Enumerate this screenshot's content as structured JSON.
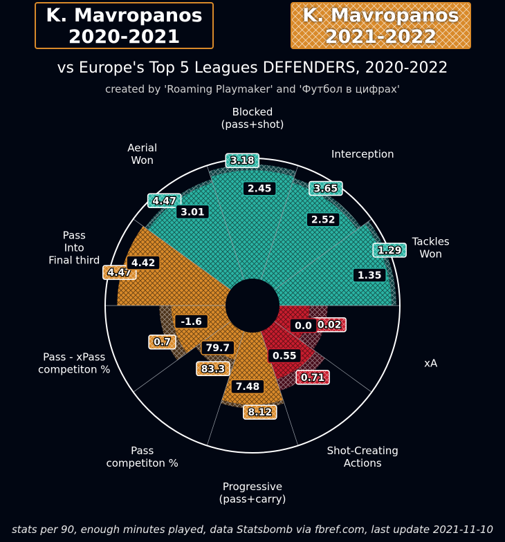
{
  "header": {
    "left_name": "K. Mavropanos",
    "left_season": "2020-2021",
    "right_name": "K. Mavropanos",
    "right_season": "2021-2022"
  },
  "subtitle": "vs Europe's Top 5 Leagues DEFENDERS, 2020-2022",
  "credit": "created by 'Roaming Playmaker' and 'Футбол в цифрах'",
  "footer": "stats per 90, enough minutes played, data Statsbomb via fbref.com, last update 2021-11-10",
  "colors": {
    "background": "#010612",
    "defense": "#2ab3a3",
    "passing": "#d98a2a",
    "attack": "#c81d2e",
    "ring": "#ffffff"
  },
  "chart_data": {
    "type": "polar-bar",
    "series": [
      {
        "name": "2020-2021",
        "style": "solid"
      },
      {
        "name": "2021-2022",
        "style": "hatched"
      }
    ],
    "categories": [
      {
        "label": "Tackles\nWon",
        "group": "defense",
        "v2020": "1.35",
        "v2021": "1.29",
        "pct2020": 0.93,
        "pct2021": 0.97
      },
      {
        "label": "Interception",
        "group": "defense",
        "v2020": "2.52",
        "v2021": "3.65",
        "pct2020": 0.85,
        "pct2021": 0.89
      },
      {
        "label": "Blocked\n(pass+shot)",
        "group": "defense",
        "v2020": "2.45",
        "v2021": "3.18",
        "pct2020": 0.9,
        "pct2021": 0.95
      },
      {
        "label": "Aerial\nWon",
        "group": "defense",
        "v2020": "3.01",
        "v2021": "4.47",
        "pct2020": 0.85,
        "pct2021": 0.88
      },
      {
        "label": "Pass\nInto\nFinal third",
        "group": "passing",
        "v2020": "4.42",
        "v2021": "4.47",
        "pct2020": 0.9,
        "pct2021": 0.88
      },
      {
        "label": "Pass - xPass\ncompetiton %",
        "group": "passing",
        "v2020": "-1.6",
        "v2021": "0.7",
        "pct2020": 0.45,
        "pct2021": 0.55
      },
      {
        "label": "Pass\ncompetiton %",
        "group": "passing",
        "v2020": "79.7",
        "v2021": "83.3",
        "pct2020": 0.25,
        "pct2021": 0.36
      },
      {
        "label": "Progressive\n(pass+carry)",
        "group": "passing",
        "v2020": "7.48",
        "v2021": "8.12",
        "pct2020": 0.6,
        "pct2021": 0.63
      },
      {
        "label": "Shot-Creating\nActions",
        "group": "attack",
        "v2020": "0.55",
        "v2021": "0.71",
        "pct2020": 0.42,
        "pct2021": 0.52
      },
      {
        "label": "xA",
        "group": "attack",
        "v2020": "0.0",
        "v2021": "0.02",
        "pct2020": 0.25,
        "pct2021": 0.4
      }
    ]
  }
}
